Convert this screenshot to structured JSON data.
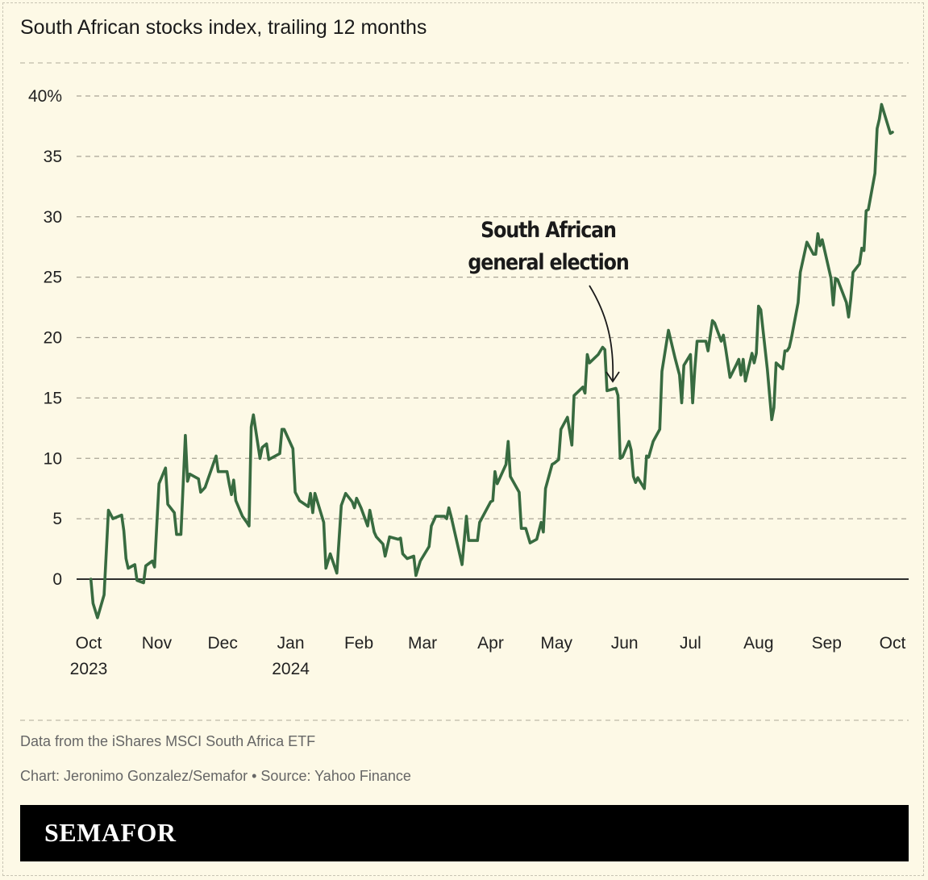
{
  "header": {
    "title": "South African stocks index, trailing 12 months"
  },
  "footer": {
    "note": "Data from the iShares MSCI South Africa ETF",
    "credit": "Chart: Jeronimo Gonzalez/Semafor • Source: Yahoo Finance",
    "brand": "SEMAFOR"
  },
  "colors": {
    "line": "#386b40",
    "background": "#fdf9e6",
    "grid": "#aaa597",
    "brand_bar": "#000000"
  },
  "chart_data": {
    "type": "line",
    "title": "South African stocks index, trailing 12 months",
    "xlabel": "",
    "ylabel": "",
    "xlim": [
      "2023-10-01",
      "2024-10-01"
    ],
    "ylim": [
      -4,
      41
    ],
    "grid": true,
    "y_ticks": [
      {
        "value": 0,
        "label": "0"
      },
      {
        "value": 5,
        "label": "5"
      },
      {
        "value": 10,
        "label": "10"
      },
      {
        "value": 15,
        "label": "15"
      },
      {
        "value": 20,
        "label": "20"
      },
      {
        "value": 25,
        "label": "25"
      },
      {
        "value": 30,
        "label": "30"
      },
      {
        "value": 35,
        "label": "35"
      },
      {
        "value": 40,
        "label": "40%"
      }
    ],
    "x_ticks": [
      {
        "date": "2023-10-01",
        "label": "Oct",
        "sublabel": "2023"
      },
      {
        "date": "2023-11-01",
        "label": "Nov"
      },
      {
        "date": "2023-12-01",
        "label": "Dec"
      },
      {
        "date": "2024-01-01",
        "label": "Jan",
        "sublabel": "2024"
      },
      {
        "date": "2024-02-01",
        "label": "Feb"
      },
      {
        "date": "2024-03-01",
        "label": "Mar"
      },
      {
        "date": "2024-04-01",
        "label": "Apr"
      },
      {
        "date": "2024-05-01",
        "label": "May"
      },
      {
        "date": "2024-06-01",
        "label": "Jun"
      },
      {
        "date": "2024-07-01",
        "label": "Jul"
      },
      {
        "date": "2024-08-01",
        "label": "Aug"
      },
      {
        "date": "2024-09-01",
        "label": "Sep"
      },
      {
        "date": "2024-10-01",
        "label": "Oct"
      }
    ],
    "annotation": {
      "text_line1": "South African",
      "text_line2": "general election",
      "date": "2024-05-29"
    },
    "series": [
      {
        "x": [
          "2023-10-02",
          "2023-10-03",
          "2023-10-05",
          "2023-10-08",
          "2023-10-10",
          "2023-10-12",
          "2023-10-16",
          "2023-10-17",
          "2023-10-18",
          "2023-10-19",
          "2023-10-22",
          "2023-10-23",
          "2023-10-26",
          "2023-10-27",
          "2023-10-30",
          "2023-10-31",
          "2023-11-02",
          "2023-11-05",
          "2023-11-06",
          "2023-11-09",
          "2023-11-10",
          "2023-11-12",
          "2023-11-14",
          "2023-11-15",
          "2023-11-16",
          "2023-11-20",
          "2023-11-21",
          "2023-11-23",
          "2023-11-28",
          "2023-11-29",
          "2023-12-03",
          "2023-12-04",
          "2023-12-05",
          "2023-12-06",
          "2023-12-07",
          "2023-12-10",
          "2023-12-12",
          "2023-12-13",
          "2023-12-14",
          "2023-12-15",
          "2023-12-18",
          "2023-12-19",
          "2023-12-21",
          "2023-12-22",
          "2023-12-27",
          "2023-12-28",
          "2023-12-29",
          "2024-01-02",
          "2024-01-03",
          "2024-01-05",
          "2024-01-09",
          "2024-01-10",
          "2024-01-11",
          "2024-01-12",
          "2024-01-16",
          "2024-01-17",
          "2024-01-19",
          "2024-01-22",
          "2024-01-24",
          "2024-01-26",
          "2024-01-29",
          "2024-01-30",
          "2024-01-31",
          "2024-02-02",
          "2024-02-05",
          "2024-02-06",
          "2024-02-08",
          "2024-02-09",
          "2024-02-12",
          "2024-02-13",
          "2024-02-15",
          "2024-02-19",
          "2024-02-20",
          "2024-02-21",
          "2024-02-23",
          "2024-02-26",
          "2024-02-27",
          "2024-02-29",
          "2024-03-04",
          "2024-03-05",
          "2024-03-07",
          "2024-03-11",
          "2024-03-12",
          "2024-03-13",
          "2024-03-14",
          "2024-03-19",
          "2024-03-21",
          "2024-03-22",
          "2024-03-26",
          "2024-03-27",
          "2024-04-01",
          "2024-04-02",
          "2024-04-03",
          "2024-04-04",
          "2024-04-08",
          "2024-04-09",
          "2024-04-10",
          "2024-04-14",
          "2024-04-15",
          "2024-04-17",
          "2024-04-19",
          "2024-04-22",
          "2024-04-24",
          "2024-04-25",
          "2024-04-26",
          "2024-04-29",
          "2024-04-30",
          "2024-05-02",
          "2024-05-03",
          "2024-05-06",
          "2024-05-08",
          "2024-05-09",
          "2024-05-13",
          "2024-05-14",
          "2024-05-15",
          "2024-05-16",
          "2024-05-20",
          "2024-05-22",
          "2024-05-23",
          "2024-05-24",
          "2024-05-28",
          "2024-05-29",
          "2024-05-30",
          "2024-05-31",
          "2024-06-03",
          "2024-06-04",
          "2024-06-05",
          "2024-06-06",
          "2024-06-07",
          "2024-06-10",
          "2024-06-11",
          "2024-06-12",
          "2024-06-14",
          "2024-06-17",
          "2024-06-18",
          "2024-06-21",
          "2024-06-24",
          "2024-06-26",
          "2024-06-27",
          "2024-06-28",
          "2024-07-01",
          "2024-07-02",
          "2024-07-03",
          "2024-07-04",
          "2024-07-08",
          "2024-07-09",
          "2024-07-11",
          "2024-07-12",
          "2024-07-15",
          "2024-07-16",
          "2024-07-17",
          "2024-07-19",
          "2024-07-22",
          "2024-07-23",
          "2024-07-24",
          "2024-07-25",
          "2024-07-26",
          "2024-07-29",
          "2024-07-30",
          "2024-07-31",
          "2024-08-01",
          "2024-08-02",
          "2024-08-05",
          "2024-08-07",
          "2024-08-08",
          "2024-08-09",
          "2024-08-12",
          "2024-08-13",
          "2024-08-14",
          "2024-08-15",
          "2024-08-16",
          "2024-08-19",
          "2024-08-20",
          "2024-08-23",
          "2024-08-26",
          "2024-08-27",
          "2024-08-28",
          "2024-08-29",
          "2024-08-30",
          "2024-09-03",
          "2024-09-04",
          "2024-09-05",
          "2024-09-06",
          "2024-09-10",
          "2024-09-11",
          "2024-09-12",
          "2024-09-13",
          "2024-09-16",
          "2024-09-17",
          "2024-09-18",
          "2024-09-19",
          "2024-09-20",
          "2024-09-23",
          "2024-09-24",
          "2024-09-25",
          "2024-09-26",
          "2024-09-30",
          "2024-10-01"
        ],
        "y": [
          0,
          -2.0,
          -3.2,
          -1.3,
          5.7,
          5.0,
          5.3,
          4.0,
          1.7,
          0.9,
          1.2,
          -0.1,
          -0.3,
          1.1,
          1.5,
          1.0,
          7.9,
          9.2,
          6.2,
          5.5,
          3.7,
          3.7,
          11.9,
          8.1,
          8.7,
          8.3,
          7.2,
          7.6,
          10.2,
          8.9,
          8.9,
          7.9,
          7.0,
          8.2,
          6.5,
          5.2,
          4.7,
          4.4,
          12.6,
          13.6,
          10.0,
          10.9,
          11.2,
          9.9,
          10.4,
          12.4,
          12.4,
          10.8,
          7.2,
          6.5,
          6.0,
          7.1,
          5.5,
          7.1,
          4.7,
          0.9,
          2.1,
          0.5,
          6.1,
          7.1,
          6.4,
          5.9,
          6.7,
          5.9,
          4.4,
          5.7,
          3.9,
          3.5,
          2.9,
          1.9,
          3.5,
          3.3,
          3.4,
          2.1,
          1.7,
          1.9,
          0.3,
          1.5,
          2.7,
          4.4,
          5.2,
          5.2,
          5.0,
          5.9,
          5.2,
          1.2,
          5.2,
          3.2,
          3.2,
          4.7,
          6.4,
          6.5,
          8.9,
          7.9,
          9.5,
          11.4,
          8.5,
          7.2,
          4.2,
          4.2,
          3.0,
          3.3,
          4.7,
          3.9,
          7.5,
          9.5,
          9.6,
          9.9,
          12.4,
          13.4,
          11.1,
          15.2,
          15.9,
          15.4,
          18.6,
          17.9,
          18.6,
          19.2,
          19.0,
          15.6,
          15.8,
          15.2,
          10.0,
          10.1,
          11.4,
          10.7,
          8.5,
          8.0,
          8.4,
          7.5,
          10.2,
          10.1,
          11.4,
          12.4,
          17.2,
          20.6,
          18.3,
          16.9,
          14.6,
          17.7,
          18.6,
          14.6,
          17.4,
          19.7,
          19.7,
          18.9,
          21.4,
          21.2,
          19.7,
          20.2,
          19.1,
          16.7,
          17.8,
          18.2,
          16.9,
          18.2,
          16.4,
          18.7,
          17.9,
          18.7,
          22.6,
          22.3,
          17.4,
          13.2,
          14.2,
          17.9,
          17.4,
          18.9,
          18.9,
          19.2,
          20.0,
          22.9,
          25.4,
          27.9,
          26.9,
          26.9,
          28.6,
          27.6,
          28.1,
          24.9,
          22.7,
          24.9,
          24.8,
          22.9,
          21.7,
          23.2,
          25.4,
          26.1,
          27.4,
          27.2,
          30.5,
          30.6,
          33.6,
          37.3,
          38.1,
          39.3,
          36.9,
          37.0
        ]
      }
    ]
  }
}
